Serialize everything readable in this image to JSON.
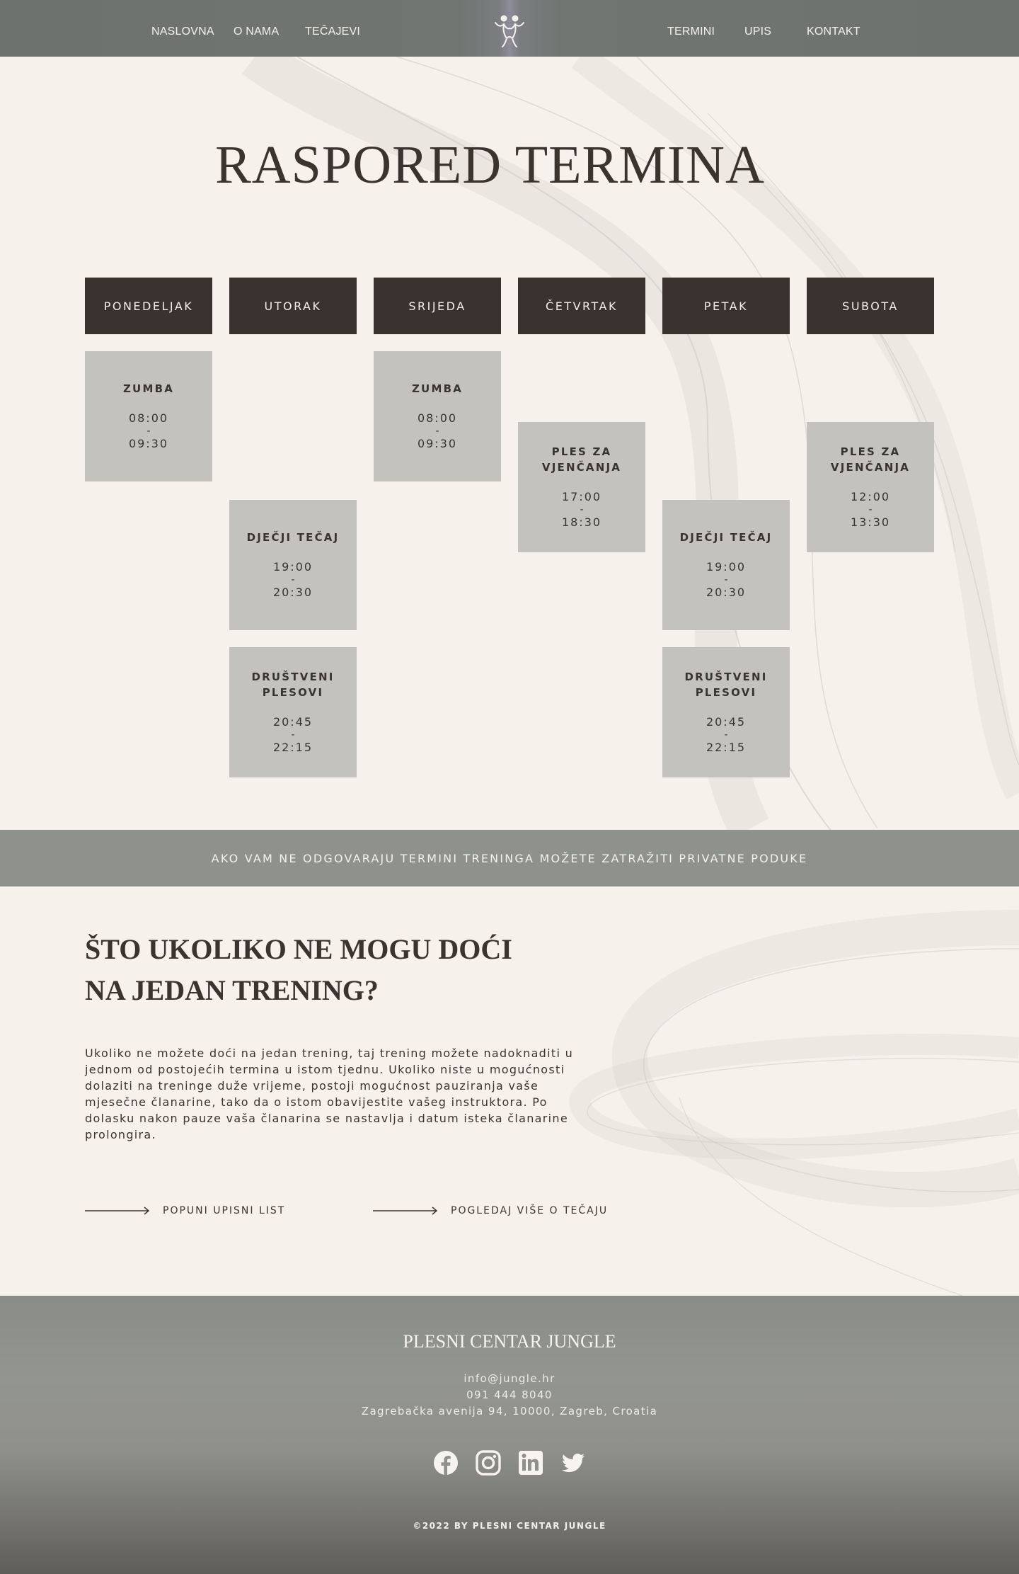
{
  "nav": {
    "left": [
      "NASLOVNA",
      "O NAMA",
      "TEČAJEVI"
    ],
    "right": [
      "TERMINI",
      "UPIS",
      "KONTAKT"
    ]
  },
  "title": "RASPORED TERMINA",
  "days": [
    "PONEDELJAK",
    "UTORAK",
    "SRIJEDA",
    "ČETVRTAK",
    "PETAK",
    "SUBOTA"
  ],
  "classes": {
    "mon_zumba": {
      "name": "ZUMBA",
      "start": "08:00",
      "sep": "-",
      "end": "09:30"
    },
    "tue_kids": {
      "name": "DJEČJI TEČAJ",
      "start": "19:00",
      "sep": "-",
      "end": "20:30"
    },
    "tue_social": {
      "name": "DRUŠTVENI PLESOVI",
      "start": "20:45",
      "sep": "-",
      "end": "22:15"
    },
    "wed_zumba": {
      "name": "ZUMBA",
      "start": "08:00",
      "sep": "-",
      "end": "09:30"
    },
    "thu_wedding": {
      "name": "PLES ZA VJENČANJA",
      "start": "17:00",
      "sep": "-",
      "end": "18:30"
    },
    "fri_kids": {
      "name": "DJEČJI TEČAJ",
      "start": "19:00",
      "sep": "-",
      "end": "20:30"
    },
    "fri_social": {
      "name": "DRUŠTVENI PLESOVI",
      "start": "20:45",
      "sep": "-",
      "end": "22:15"
    },
    "sat_wedding": {
      "name": "PLES ZA VJENČANJA",
      "start": "12:00",
      "sep": "-",
      "end": "13:30"
    }
  },
  "banner": "AKO VAM NE ODGOVARAJU TERMINI TRENINGA MOŽETE ZATRAŽITI PRIVATNE PODUKE",
  "question": {
    "title": "ŠTO UKOLIKO NE MOGU DOĆI NA JEDAN TRENING?",
    "text": "Ukoliko ne možete doći na jedan trening, taj trening možete nadoknaditi u jednom od postojećih termina u istom tjednu. Ukoliko niste u mogućnosti dolaziti na treninge duže vrijeme, postoji mogućnost pauziranja vaše mjesečne članarine, tako da o istom obavijestite vašeg instruktora. Po dolasku nakon pauze vaša članarina se nastavlja i datum isteka članarine prolongira.",
    "cta1": "POPUNI UPISNI LIST",
    "cta2": "POGLEDAJ VIŠE O TEČAJU"
  },
  "footer": {
    "title": "PLESNI CENTAR JUNGLE",
    "email": "info@jungle.hr",
    "phone": "091 444 8040",
    "address": "Zagrebačka avenija 94, 10000, Zagreb, Croatia",
    "socials": [
      "facebook-icon",
      "instagram-icon",
      "linkedin-icon",
      "twitter-icon"
    ],
    "copyright": "©2022 BY PLESNI CENTAR JUNGLE"
  },
  "colors": {
    "background": "#f7f1ec",
    "nav": "#6e726e",
    "day_header": "#3a322e",
    "class_box": "#c3c2bd",
    "banner": "#8f918d"
  }
}
